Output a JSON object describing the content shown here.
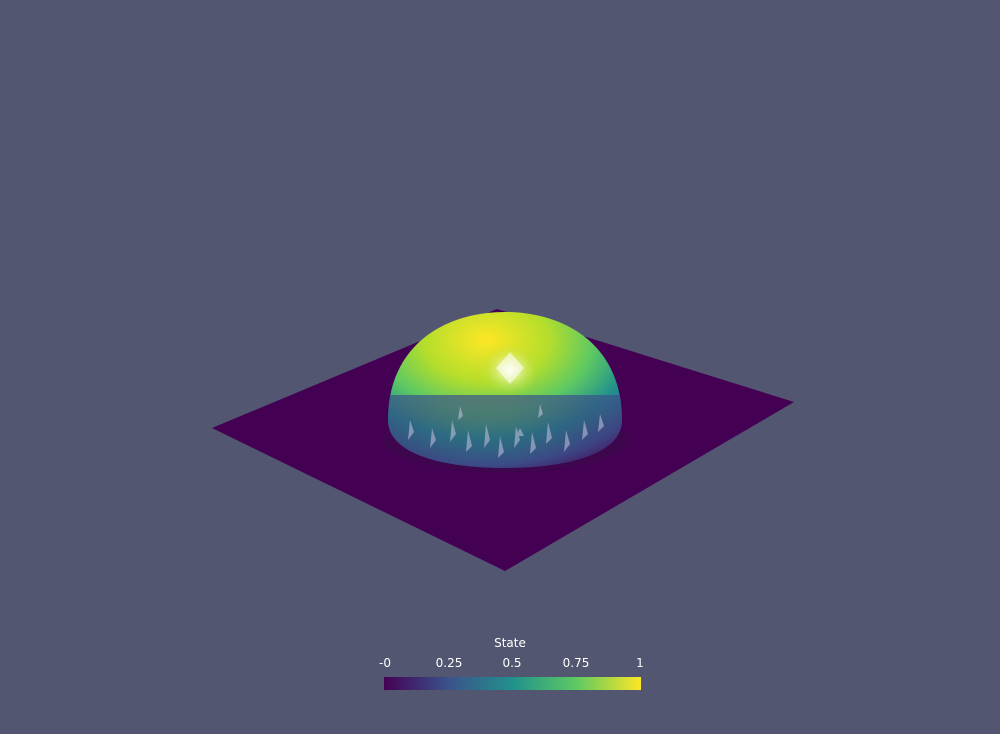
{
  "colorbar": {
    "title": "State",
    "ticks": [
      "-0",
      "0.25",
      "0.5",
      "0.75",
      "1"
    ],
    "range": [
      0,
      1
    ],
    "colormap": "viridis",
    "colors": [
      "#440154",
      "#3b528b",
      "#21918c",
      "#5ec962",
      "#fde725"
    ]
  },
  "scene": {
    "background": "#525670",
    "object": "hemispherical bump on a flat square plane",
    "plane_color": "#440154",
    "peak_color": "#fde725"
  }
}
